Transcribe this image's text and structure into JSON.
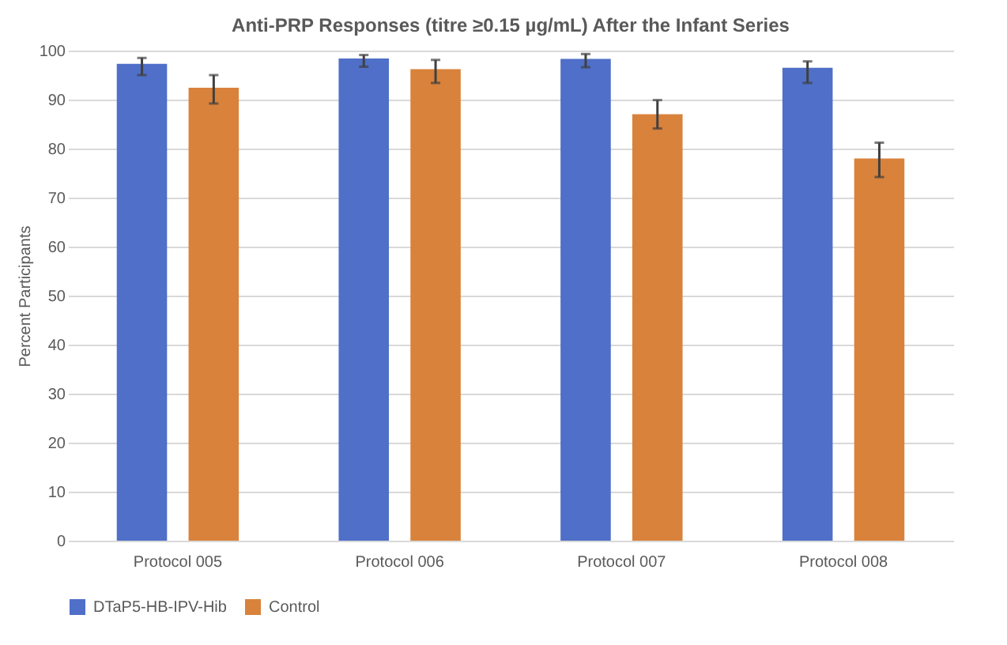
{
  "chart_data": {
    "type": "bar",
    "title": "Anti-PRP Responses (titre ≥0.15 µg/mL) After the Infant Series",
    "ylabel": "Percent Participants",
    "categories": [
      "Protocol 005",
      "Protocol 006",
      "Protocol 007",
      "Protocol 008"
    ],
    "series": [
      {
        "name": "DTaP5-HB-IPV-Hib",
        "color": "#4f6fc8",
        "values": [
          97.3,
          98.4,
          98.3,
          96.5
        ],
        "errors": [
          [
            95.0,
            98.5
          ],
          [
            96.7,
            99.1
          ],
          [
            96.6,
            99.3
          ],
          [
            93.4,
            97.8
          ]
        ]
      },
      {
        "name": "Control",
        "color": "#d9823b",
        "values": [
          92.4,
          96.2,
          87.0,
          78.0
        ],
        "errors": [
          [
            89.2,
            95.0
          ],
          [
            93.4,
            98.1
          ],
          [
            84.1,
            89.9
          ],
          [
            74.2,
            81.2
          ]
        ]
      }
    ],
    "ylim": [
      0,
      100
    ],
    "yticks": [
      0,
      10,
      20,
      30,
      40,
      50,
      60,
      70,
      80,
      90,
      100
    ],
    "grid": "y",
    "legend": "bottom"
  }
}
